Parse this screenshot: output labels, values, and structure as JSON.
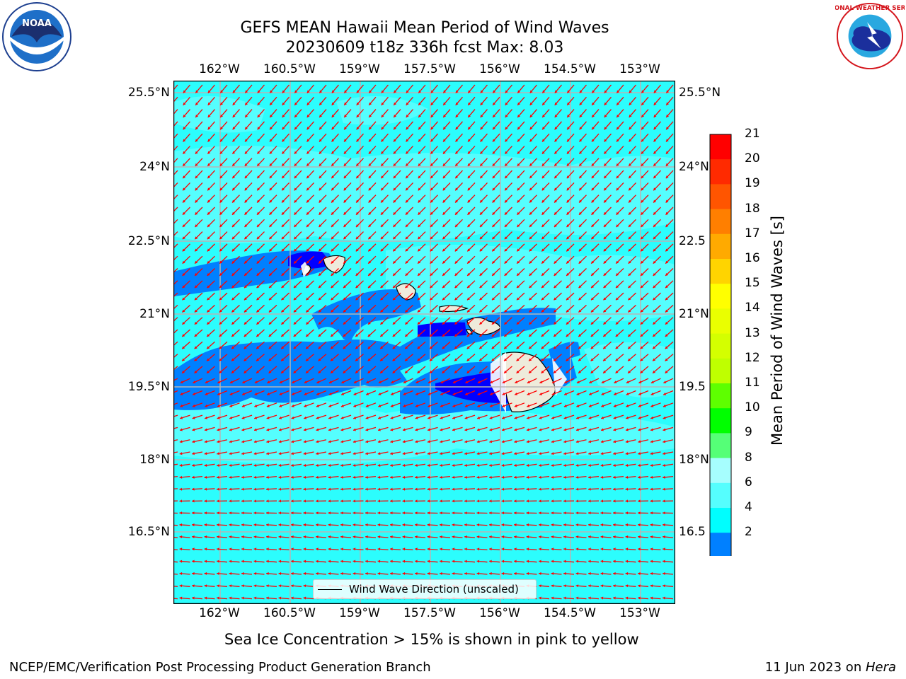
{
  "title": {
    "line1": "GEFS MEAN Hawaii Mean Period of Wind Waves",
    "line2": "20230609 t18z 336h fcst   Max: 8.03"
  },
  "map": {
    "lon_ticks": [
      "162°W",
      "160.5°W",
      "159°W",
      "157.5°W",
      "156°W",
      "154.5°W",
      "153°W"
    ],
    "lat_ticks_left": [
      "25.5°N",
      "24°N",
      "22.5°N",
      "21°N",
      "19.5°N",
      "18°N",
      "16.5°N"
    ],
    "lat_ticks_right": [
      "25.5°N",
      "24°N",
      "22.5",
      "21°N",
      "19.5",
      "18°N",
      "16.5"
    ],
    "legend_label": "Wind Wave Direction (unscaled)",
    "ocean_color": "#2cfdfd",
    "land_color": "#eeebdb",
    "arrow_color": "#ff0000"
  },
  "colorbar": {
    "title": "Mean Period of Wind Waves [s]",
    "levels": [
      "21",
      "20",
      "19",
      "18",
      "17",
      "16",
      "15",
      "14",
      "13",
      "12",
      "11",
      "10",
      "9",
      "8",
      "6",
      "4",
      "2"
    ],
    "colors": [
      "#ff0000",
      "#ff2a00",
      "#ff5500",
      "#ff7f00",
      "#ffaa00",
      "#ffd400",
      "#ffff00",
      "#eaff00",
      "#d4ff00",
      "#bfff00",
      "#5eff00",
      "#00ff00",
      "#55ff77",
      "#a6fefe",
      "#55fefe",
      "#00fefe",
      "#0080ff"
    ],
    "extend_color": "#0000ff"
  },
  "ice_note": "Sea Ice Concentration > 15% is shown in pink to yellow",
  "footer": {
    "left": "NCEP/EMC/Verification Post Processing Product Generation Branch",
    "date": "11 Jun 2023 on ",
    "machine": "Hera"
  },
  "logos": {
    "noaa_text": "NOAA",
    "nws_text": "NATIONAL WEATHER SERVICE"
  }
}
